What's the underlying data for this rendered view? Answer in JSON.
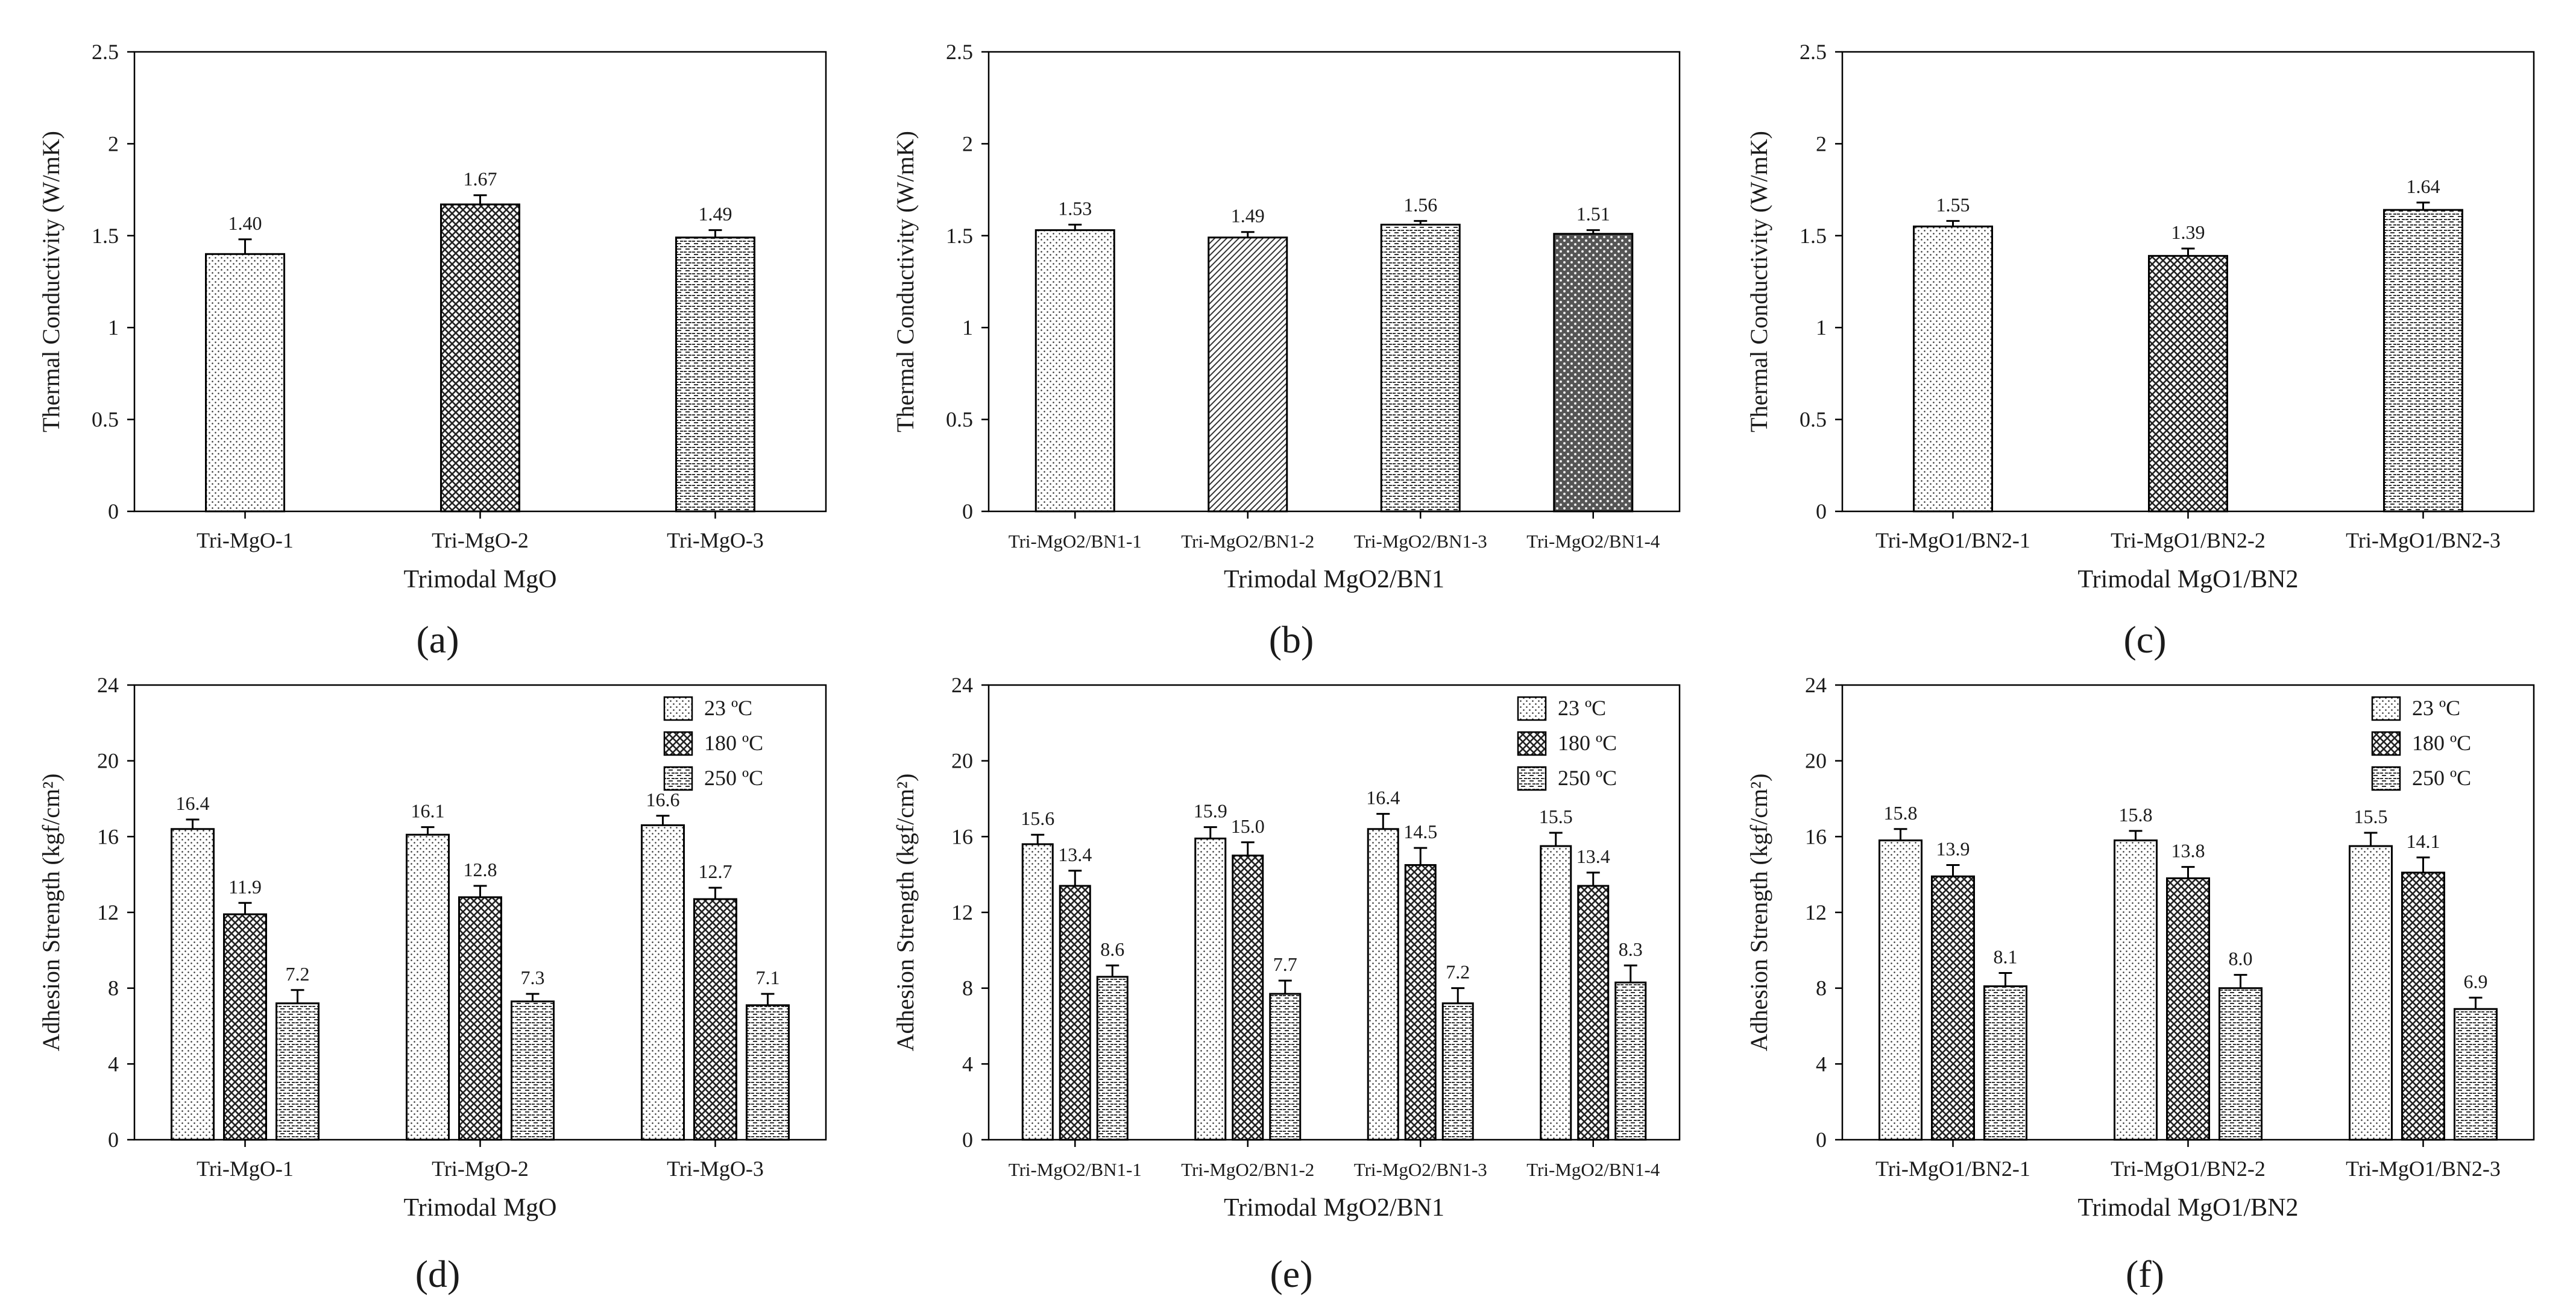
{
  "chart_data": [
    {
      "panel": "a",
      "type": "bar",
      "ylabel": "Thermal Conductivity (W/mK)",
      "xlabel": "Trimodal MgO",
      "ylim": [
        0,
        2.5
      ],
      "yticks": [
        "0",
        "0.5",
        "1",
        "1.5",
        "2",
        "2.5"
      ],
      "categories": [
        "Tri-MgO-1",
        "Tri-MgO-2",
        "Tri-MgO-3"
      ],
      "series": [
        {
          "name": "",
          "values": [
            1.4,
            1.67,
            1.49
          ],
          "labels": [
            "1.40",
            "1.67",
            "1.49"
          ],
          "errors": [
            0.08,
            0.05,
            0.04
          ],
          "patterns": [
            "pat-dots",
            "pat-cross",
            "pat-hline"
          ]
        }
      ],
      "legend": []
    },
    {
      "panel": "b",
      "type": "bar",
      "ylabel": "Thermal Conductivity (W/mK)",
      "xlabel": "Trimodal MgO2/BN1",
      "ylim": [
        0,
        2.5
      ],
      "yticks": [
        "0",
        "0.5",
        "1",
        "1.5",
        "2",
        "2.5"
      ],
      "categories": [
        "Tri-MgO2/BN1-1",
        "Tri-MgO2/BN1-2",
        "Tri-MgO2/BN1-3",
        "Tri-MgO2/BN1-4"
      ],
      "series": [
        {
          "name": "",
          "values": [
            1.53,
            1.49,
            1.56,
            1.51
          ],
          "labels": [
            "1.53",
            "1.49",
            "1.56",
            "1.51"
          ],
          "errors": [
            0.03,
            0.03,
            0.02,
            0.02
          ],
          "patterns": [
            "pat-dots",
            "pat-diag",
            "pat-hline",
            "pat-dark"
          ]
        }
      ],
      "legend": []
    },
    {
      "panel": "c",
      "type": "bar",
      "ylabel": "Thermal Conductivity (W/mK)",
      "xlabel": "Trimodal MgO1/BN2",
      "ylim": [
        0,
        2.5
      ],
      "yticks": [
        "0",
        "0.5",
        "1",
        "1.5",
        "2",
        "2.5"
      ],
      "categories": [
        "Tri-MgO1/BN2-1",
        "Tri-MgO1/BN2-2",
        "Tri-MgO1/BN2-3"
      ],
      "series": [
        {
          "name": "",
          "values": [
            1.55,
            1.39,
            1.64
          ],
          "labels": [
            "1.55",
            "1.39",
            "1.64"
          ],
          "errors": [
            0.03,
            0.04,
            0.04
          ],
          "patterns": [
            "pat-dots",
            "pat-cross",
            "pat-hline"
          ]
        }
      ],
      "legend": []
    },
    {
      "panel": "d",
      "type": "bar",
      "ylabel": "Adhesion Strength (kgf/cm²)",
      "xlabel": "Trimodal MgO",
      "ylim": [
        0,
        24
      ],
      "yticks": [
        "0",
        "4",
        "8",
        "12",
        "16",
        "20",
        "24"
      ],
      "categories": [
        "Tri-MgO-1",
        "Tri-MgO-2",
        "Tri-MgO-3"
      ],
      "series": [
        {
          "name": "23 ºC",
          "values": [
            16.4,
            16.1,
            16.6
          ],
          "labels": [
            "16.4",
            "16.1",
            "16.6"
          ],
          "errors": [
            0.5,
            0.4,
            0.5
          ],
          "pattern": "pat-dots"
        },
        {
          "name": "180 ºC",
          "values": [
            11.9,
            12.8,
            12.7
          ],
          "labels": [
            "11.9",
            "12.8",
            "12.7"
          ],
          "errors": [
            0.6,
            0.6,
            0.6
          ],
          "pattern": "pat-cross"
        },
        {
          "name": "250 ºC",
          "values": [
            7.2,
            7.3,
            7.1
          ],
          "labels": [
            "7.2",
            "7.3",
            "7.1"
          ],
          "errors": [
            0.7,
            0.4,
            0.6
          ],
          "pattern": "pat-hline"
        }
      ],
      "legend": [
        "23 ºC",
        "180 ºC",
        "250 ºC"
      ]
    },
    {
      "panel": "e",
      "type": "bar",
      "ylabel": "Adhesion Strength (kgf/cm²)",
      "xlabel": "Trimodal MgO2/BN1",
      "ylim": [
        0,
        24
      ],
      "yticks": [
        "0",
        "4",
        "8",
        "12",
        "16",
        "20",
        "24"
      ],
      "categories": [
        "Tri-MgO2/BN1-1",
        "Tri-MgO2/BN1-2",
        "Tri-MgO2/BN1-3",
        "Tri-MgO2/BN1-4"
      ],
      "series": [
        {
          "name": "23 ºC",
          "values": [
            15.6,
            15.9,
            16.4,
            15.5
          ],
          "labels": [
            "15.6",
            "15.9",
            "16.4",
            "15.5"
          ],
          "errors": [
            0.5,
            0.6,
            0.8,
            0.7
          ],
          "pattern": "pat-dots"
        },
        {
          "name": "180 ºC",
          "values": [
            13.4,
            15.0,
            14.5,
            13.4
          ],
          "labels": [
            "13.4",
            "15.0",
            "14.5",
            "13.4"
          ],
          "errors": [
            0.8,
            0.7,
            0.9,
            0.7
          ],
          "pattern": "pat-cross"
        },
        {
          "name": "250 ºC",
          "values": [
            8.6,
            7.7,
            7.2,
            8.3
          ],
          "labels": [
            "8.6",
            "7.7",
            "7.2",
            "8.3"
          ],
          "errors": [
            0.6,
            0.7,
            0.8,
            0.9
          ],
          "pattern": "pat-hline"
        }
      ],
      "legend": [
        "23 ºC",
        "180 ºC",
        "250 ºC"
      ]
    },
    {
      "panel": "f",
      "type": "bar",
      "ylabel": "Adhesion Strength (kgf/cm²)",
      "xlabel": "Trimodal MgO1/BN2",
      "ylim": [
        0,
        24
      ],
      "yticks": [
        "0",
        "4",
        "8",
        "12",
        "16",
        "20",
        "24"
      ],
      "categories": [
        "Tri-MgO1/BN2-1",
        "Tri-MgO1/BN2-2",
        "Tri-MgO1/BN2-3"
      ],
      "series": [
        {
          "name": "23 ºC",
          "values": [
            15.8,
            15.8,
            15.5
          ],
          "labels": [
            "15.8",
            "15.8",
            "15.5"
          ],
          "errors": [
            0.6,
            0.5,
            0.7
          ],
          "pattern": "pat-dots"
        },
        {
          "name": "180 ºC",
          "values": [
            13.9,
            13.8,
            14.1
          ],
          "labels": [
            "13.9",
            "13.8",
            "14.1"
          ],
          "errors": [
            0.6,
            0.6,
            0.8
          ],
          "pattern": "pat-cross"
        },
        {
          "name": "250 ºC",
          "values": [
            8.1,
            8.0,
            6.9
          ],
          "labels": [
            "8.1",
            "8.0",
            "6.9"
          ],
          "errors": [
            0.7,
            0.7,
            0.6
          ],
          "pattern": "pat-hline"
        }
      ],
      "legend": [
        "23 ºC",
        "180 ºC",
        "250 ºC"
      ]
    }
  ],
  "panel_labels": [
    "(a)",
    "(b)",
    "(c)",
    "(d)",
    "(e)",
    "(f)"
  ]
}
